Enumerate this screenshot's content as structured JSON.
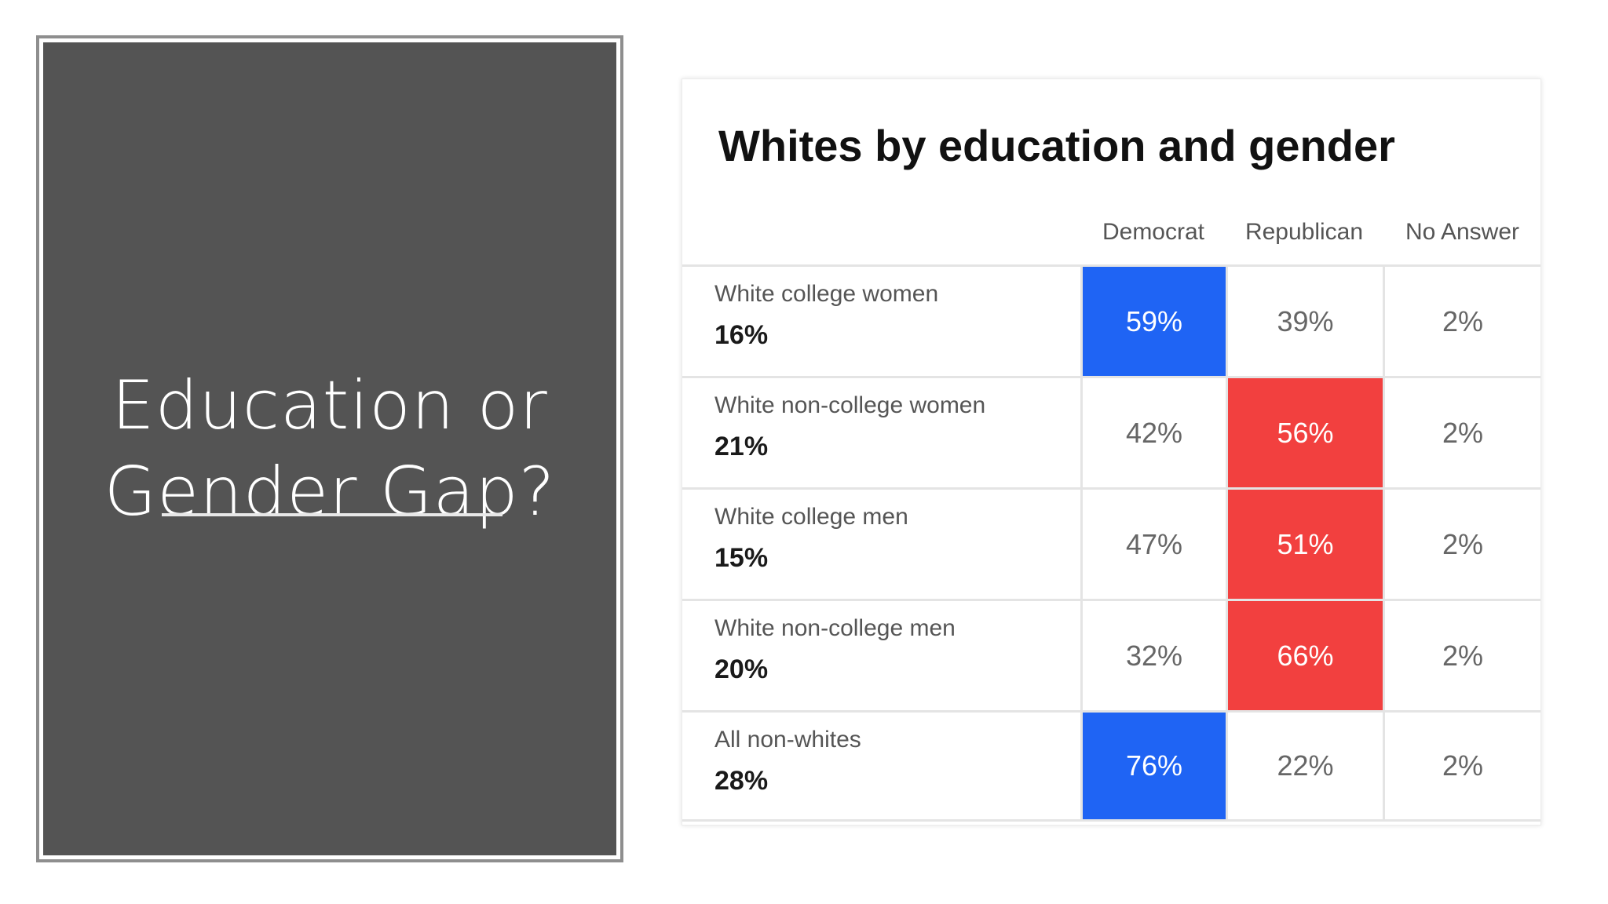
{
  "slide": {
    "title_line1": "Education or",
    "title_line2": "Gender Gap?"
  },
  "table": {
    "title": "Whites by education and gender",
    "columns": [
      "Democrat",
      "Republican",
      "No Answer"
    ],
    "rows": [
      {
        "label": "White college women",
        "share": "16%",
        "democrat": "59%",
        "republican": "39%",
        "no_answer": "2%",
        "winner": "democrat"
      },
      {
        "label": "White non-college women",
        "share": "21%",
        "democrat": "42%",
        "republican": "56%",
        "no_answer": "2%",
        "winner": "republican"
      },
      {
        "label": "White college men",
        "share": "15%",
        "democrat": "47%",
        "republican": "51%",
        "no_answer": "2%",
        "winner": "republican"
      },
      {
        "label": "White non-college men",
        "share": "20%",
        "democrat": "32%",
        "republican": "66%",
        "no_answer": "2%",
        "winner": "republican"
      },
      {
        "label": "All non-whites",
        "share": "28%",
        "democrat": "76%",
        "republican": "22%",
        "no_answer": "2%",
        "winner": "democrat"
      }
    ],
    "colors": {
      "democrat": "#1f64f4",
      "republican": "#f2403f",
      "title_panel": "#545454"
    }
  }
}
